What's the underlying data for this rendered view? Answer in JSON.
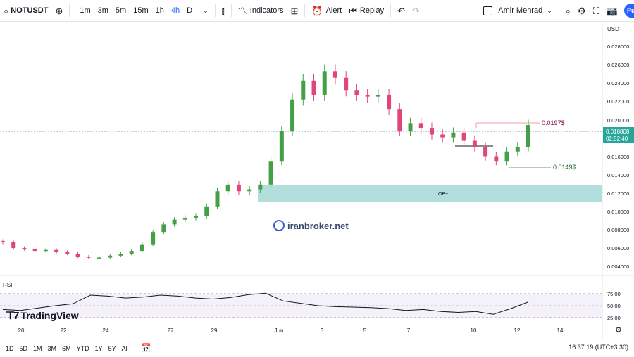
{
  "toolbar": {
    "symbol": "NOTUSDT",
    "intervals": [
      "1m",
      "3m",
      "5m",
      "15m",
      "1h",
      "4h",
      "D"
    ],
    "active_interval": "4h",
    "indicators_label": "Indicators",
    "alert_label": "Alert",
    "replay_label": "Replay",
    "user_name": "Amir Mehrad",
    "publish_label": "Pu",
    "accent_color": "#2962ff"
  },
  "price_axis": {
    "currency": "USDT",
    "ticks": [
      "0.028000",
      "0.026000",
      "0.024000",
      "0.022000",
      "0.020000",
      "0.016000",
      "0.014000",
      "0.012000",
      "0.010000",
      "0.008000",
      "0.006000",
      "0.004000"
    ],
    "last_price": "0.018808",
    "countdown": "02:52:40",
    "last_price_color": "#26a69a"
  },
  "rsi": {
    "label": "RSI",
    "ticks": [
      "75.00",
      "50.00",
      "25.00"
    ]
  },
  "time_axis": {
    "ticks": [
      "20",
      "22",
      "24",
      "27",
      "29",
      "Jun",
      "3",
      "5",
      "7",
      "10",
      "12",
      "14"
    ]
  },
  "annotations": {
    "resistance_label": "0.0197$",
    "support_label": "0.0149$",
    "ob_label": "OB+",
    "resistance_color": "#f0a0a8",
    "support_color": "#7a8a8a",
    "ob_color": "#b2dfdb"
  },
  "bottom": {
    "ranges": [
      "1D",
      "5D",
      "1M",
      "3M",
      "6M",
      "YTD",
      "1Y",
      "5Y",
      "All"
    ],
    "clock": "16:37:19 (UTC+3:30)"
  },
  "watermark": {
    "tradingview": "TradingView",
    "broker": "iranbroker.net"
  },
  "chart_data": {
    "type": "candlestick",
    "series": [
      {
        "name": "NOTUSDT",
        "close_approx": [
          0.0064,
          0.0058,
          0.0057,
          0.0055,
          0.0056,
          0.0054,
          0.0052,
          0.0049,
          0.0048,
          0.0048,
          0.005,
          0.0052,
          0.0055,
          0.0062,
          0.0075,
          0.0083,
          0.0088,
          0.009,
          0.0092,
          0.0102,
          0.0118,
          0.0125,
          0.0118,
          0.012,
          0.0125,
          0.015,
          0.0182,
          0.0215,
          0.0235,
          0.022,
          0.0245,
          0.0238,
          0.0225,
          0.022,
          0.0218,
          0.022,
          0.0205,
          0.0182,
          0.019,
          0.0185,
          0.0178,
          0.0175,
          0.018,
          0.0172,
          0.0165,
          0.0155,
          0.015,
          0.016,
          0.0165,
          0.0188
        ]
      }
    ],
    "rsi_approx": [
      42,
      40,
      45,
      50,
      54,
      72,
      70,
      66,
      68,
      72,
      70,
      66,
      64,
      67,
      73,
      76,
      60,
      55,
      50,
      48,
      47,
      46,
      44,
      40,
      42,
      38,
      36,
      38,
      32,
      44,
      58
    ],
    "ylim": [
      0.0035,
      0.0295
    ],
    "ylabel": "USDT"
  }
}
